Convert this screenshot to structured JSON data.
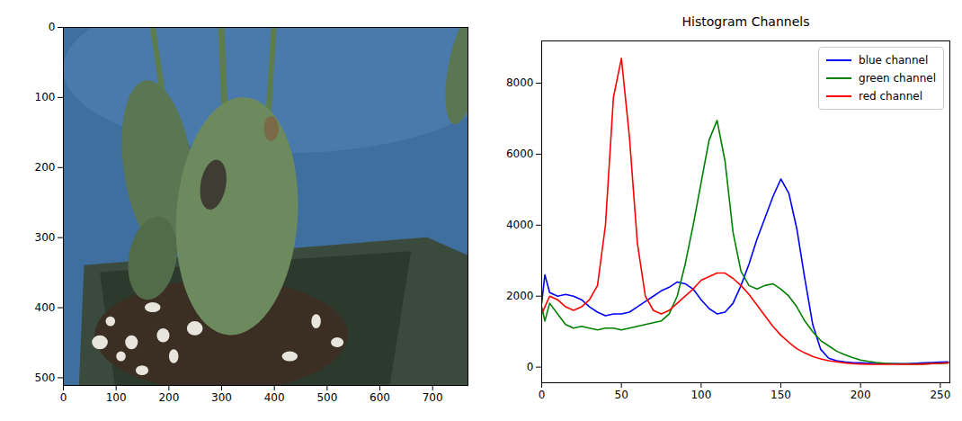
{
  "chart_data": [
    {
      "type": "image",
      "xlim": [
        0,
        767
      ],
      "ylim": [
        511,
        0
      ],
      "xticks": [
        0,
        100,
        200,
        300,
        400,
        500,
        600,
        700
      ],
      "yticks": [
        0,
        100,
        200,
        300,
        400,
        500
      ]
    },
    {
      "type": "line",
      "title": "Histogram Channels",
      "x": [
        0,
        2,
        5,
        10,
        15,
        20,
        25,
        30,
        35,
        40,
        45,
        50,
        55,
        60,
        65,
        70,
        75,
        80,
        85,
        90,
        95,
        100,
        105,
        110,
        115,
        120,
        125,
        130,
        135,
        140,
        145,
        150,
        155,
        160,
        165,
        170,
        175,
        180,
        185,
        190,
        195,
        200,
        205,
        210,
        215,
        220,
        225,
        230,
        235,
        240,
        245,
        250,
        255
      ],
      "series": [
        {
          "name": "blue channel",
          "color": "#0000ff",
          "values": [
            1800,
            2600,
            2100,
            2000,
            2050,
            2000,
            1900,
            1700,
            1550,
            1450,
            1500,
            1500,
            1550,
            1700,
            1850,
            2000,
            2150,
            2250,
            2400,
            2350,
            2200,
            1900,
            1650,
            1500,
            1550,
            1800,
            2300,
            2900,
            3600,
            4200,
            4800,
            5300,
            4900,
            3900,
            2500,
            1200,
            500,
            250,
            180,
            150,
            130,
            120,
            110,
            100,
            100,
            100,
            100,
            100,
            110,
            120,
            130,
            140,
            150
          ]
        },
        {
          "name": "green channel",
          "color": "#008000",
          "values": [
            1700,
            1300,
            1800,
            1500,
            1200,
            1100,
            1150,
            1100,
            1050,
            1100,
            1100,
            1050,
            1100,
            1150,
            1200,
            1250,
            1300,
            1500,
            2000,
            2900,
            4000,
            5200,
            6400,
            6950,
            5800,
            3800,
            2700,
            2300,
            2200,
            2300,
            2350,
            2200,
            2000,
            1700,
            1300,
            1000,
            750,
            600,
            450,
            350,
            270,
            200,
            160,
            130,
            110,
            100,
            90,
            90,
            90,
            90,
            100,
            100,
            120
          ]
        },
        {
          "name": "red channel",
          "color": "#ff0000",
          "values": [
            1500,
            1700,
            2000,
            1900,
            1700,
            1600,
            1700,
            1900,
            2300,
            4000,
            7600,
            8700,
            6500,
            3500,
            2000,
            1600,
            1500,
            1600,
            1800,
            2000,
            2200,
            2450,
            2550,
            2650,
            2650,
            2500,
            2300,
            2050,
            1750,
            1450,
            1150,
            900,
            700,
            520,
            400,
            300,
            230,
            180,
            150,
            120,
            100,
            90,
            80,
            80,
            80,
            80,
            80,
            80,
            80,
            90,
            100,
            110,
            120
          ]
        }
      ],
      "xlim": [
        0,
        256
      ],
      "ylim": [
        -440,
        9190
      ],
      "xticks": [
        0,
        50,
        100,
        150,
        200,
        250
      ],
      "yticks": [
        0,
        2000,
        4000,
        6000,
        8000
      ],
      "legend": "upper right",
      "grid": false
    }
  ]
}
